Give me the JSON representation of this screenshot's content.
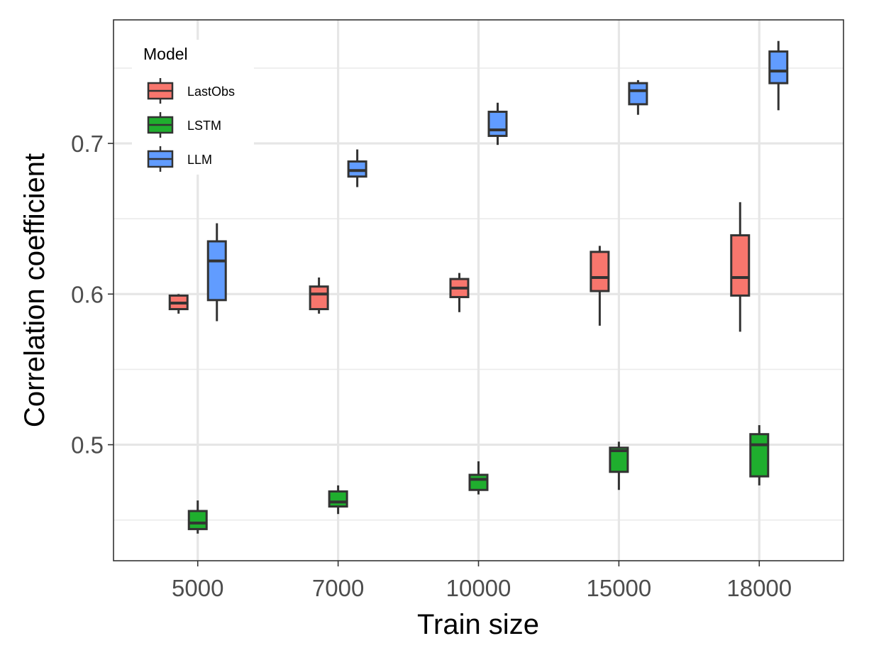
{
  "chart_data": {
    "type": "box",
    "title": "",
    "xlabel": "Train size",
    "ylabel": "Correlation coefficient",
    "categories": [
      "5000",
      "7000",
      "10000",
      "15000",
      "18000"
    ],
    "yticks": [
      0.5,
      0.6,
      0.7
    ],
    "ytick_labels": [
      "0.5",
      "0.6",
      "0.7"
    ],
    "ylim": [
      0.423,
      0.782
    ],
    "grid": true,
    "legend": {
      "title": "Model",
      "placement": "top-left"
    },
    "series": [
      {
        "name": "LastObs",
        "color": "#F8766D",
        "boxes": [
          {
            "category": "5000",
            "min": 0.587,
            "q1": 0.59,
            "median": 0.594,
            "q3": 0.599,
            "max": 0.6
          },
          {
            "category": "7000",
            "min": 0.587,
            "q1": 0.59,
            "median": 0.6,
            "q3": 0.605,
            "max": 0.611
          },
          {
            "category": "10000",
            "min": 0.588,
            "q1": 0.598,
            "median": 0.604,
            "q3": 0.61,
            "max": 0.614
          },
          {
            "category": "15000",
            "min": 0.579,
            "q1": 0.602,
            "median": 0.611,
            "q3": 0.628,
            "max": 0.632
          },
          {
            "category": "18000",
            "min": 0.575,
            "q1": 0.599,
            "median": 0.611,
            "q3": 0.639,
            "max": 0.661
          }
        ]
      },
      {
        "name": "LSTM",
        "color": "#1FAE2E",
        "boxes": [
          {
            "category": "5000",
            "min": 0.441,
            "q1": 0.444,
            "median": 0.448,
            "q3": 0.456,
            "max": 0.463
          },
          {
            "category": "7000",
            "min": 0.454,
            "q1": 0.459,
            "median": 0.462,
            "q3": 0.469,
            "max": 0.473
          },
          {
            "category": "10000",
            "min": 0.467,
            "q1": 0.47,
            "median": 0.477,
            "q3": 0.48,
            "max": 0.489
          },
          {
            "category": "15000",
            "min": 0.47,
            "q1": 0.482,
            "median": 0.496,
            "q3": 0.498,
            "max": 0.502
          },
          {
            "category": "18000",
            "min": 0.473,
            "q1": 0.479,
            "median": 0.5,
            "q3": 0.507,
            "max": 0.513
          }
        ]
      },
      {
        "name": "LLM",
        "color": "#619CFF",
        "boxes": [
          {
            "category": "5000",
            "min": 0.582,
            "q1": 0.596,
            "median": 0.622,
            "q3": 0.635,
            "max": 0.647
          },
          {
            "category": "7000",
            "min": 0.671,
            "q1": 0.678,
            "median": 0.682,
            "q3": 0.688,
            "max": 0.696
          },
          {
            "category": "10000",
            "min": 0.699,
            "q1": 0.705,
            "median": 0.709,
            "q3": 0.721,
            "max": 0.727
          },
          {
            "category": "15000",
            "min": 0.719,
            "q1": 0.726,
            "median": 0.735,
            "q3": 0.74,
            "max": 0.742
          },
          {
            "category": "18000",
            "min": 0.722,
            "q1": 0.74,
            "median": 0.748,
            "q3": 0.761,
            "max": 0.768
          }
        ]
      }
    ]
  }
}
